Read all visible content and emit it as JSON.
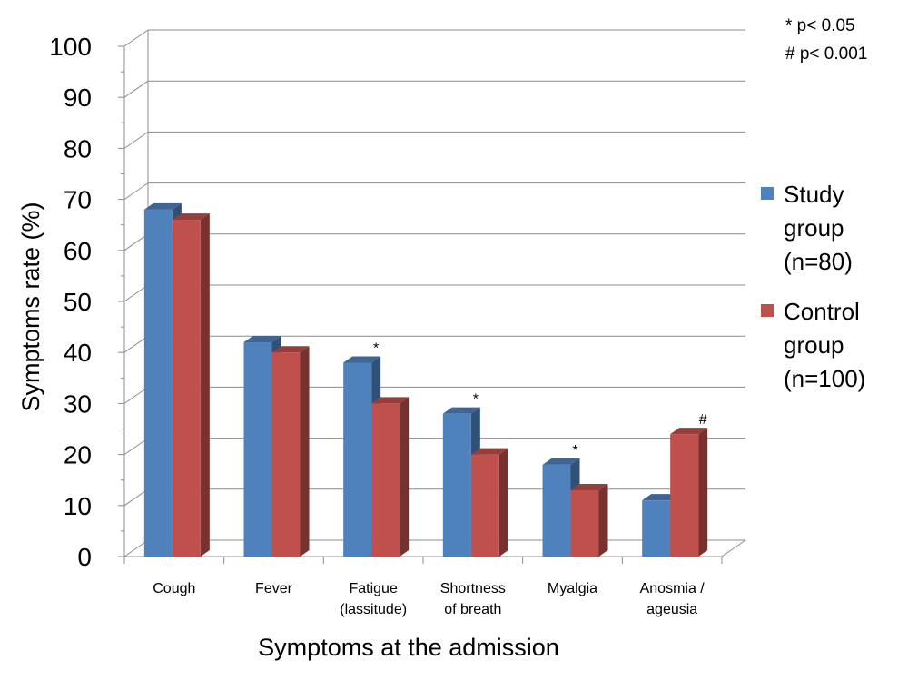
{
  "chart_data": {
    "type": "bar",
    "xlabel": "Symptoms at the admission",
    "ylabel": "Symptoms rate (%)",
    "ylim": [
      0,
      100
    ],
    "yticks": [
      "0",
      "10",
      "20",
      "30",
      "40",
      "50",
      "60",
      "70",
      "80",
      "90",
      "100"
    ],
    "categories": [
      [
        "Cough"
      ],
      [
        "Fever"
      ],
      [
        "Fatigue",
        "(lassitude)"
      ],
      [
        "Shortness",
        "of breath"
      ],
      [
        "Myalgia"
      ],
      [
        "Anosmia /",
        "ageusia"
      ]
    ],
    "series": [
      {
        "name": "Study group (n=80)",
        "legend_lines": [
          "Study",
          "group",
          "(n=80)"
        ],
        "color": "#4F81BD",
        "values": [
          68,
          42,
          38,
          28,
          18,
          11
        ]
      },
      {
        "name": "Control group (n=100)",
        "legend_lines": [
          "Control",
          "group",
          "(n=100)"
        ],
        "color": "#C0504D",
        "values": [
          66,
          40,
          30,
          20,
          13,
          24
        ]
      }
    ],
    "annotations": [
      {
        "category_index": 2,
        "series_index": 0,
        "text": "*"
      },
      {
        "category_index": 3,
        "series_index": 0,
        "text": "*"
      },
      {
        "category_index": 4,
        "series_index": 0,
        "text": "*"
      },
      {
        "category_index": 5,
        "series_index": 1,
        "text": "#"
      }
    ],
    "notes": [
      "* p< 0.05",
      "# p< 0.001"
    ],
    "grid": true,
    "style": "3d-clustered-bar",
    "legend_position": "right"
  }
}
